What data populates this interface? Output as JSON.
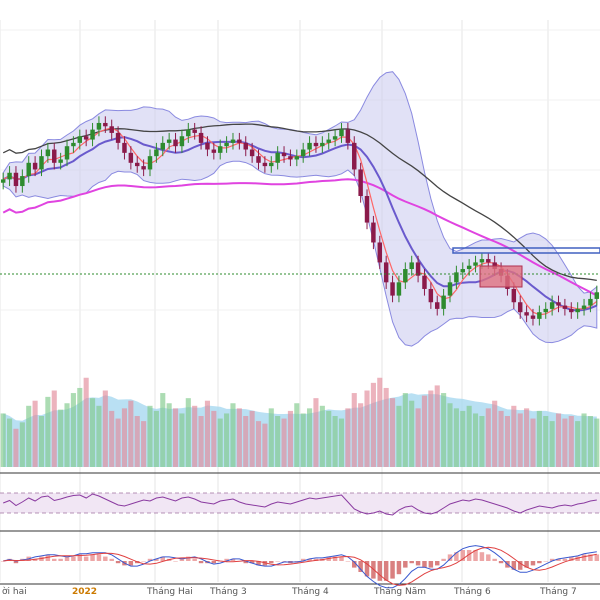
{
  "chart_data": {
    "type": "candlestick",
    "title": "",
    "panels": [
      "price",
      "volume",
      "rsi",
      "macd"
    ],
    "x_tick_labels": [
      {
        "label": "ời hai",
        "highlight": false
      },
      {
        "label": "2022",
        "highlight": true
      },
      {
        "label": "Tháng Hai",
        "highlight": false
      },
      {
        "label": "Tháng 3",
        "highlight": false
      },
      {
        "label": "Tháng 4",
        "highlight": false
      },
      {
        "label": "Tháng Năm",
        "highlight": false
      },
      {
        "label": "Tháng 6",
        "highlight": false
      },
      {
        "label": "Tháng 7",
        "highlight": false
      }
    ],
    "price_scale": [
      0,
      100
    ],
    "price_close": [
      55,
      57,
      53,
      56,
      60,
      58,
      62,
      64,
      60,
      61,
      65,
      66,
      68,
      67,
      70,
      72,
      71,
      69,
      66,
      63,
      60,
      59,
      58,
      62,
      64,
      66,
      67,
      65,
      68,
      70,
      69,
      66,
      64,
      63,
      65,
      66,
      67,
      66,
      64,
      62,
      60,
      59,
      60,
      63,
      62,
      61,
      62,
      64,
      66,
      65,
      66,
      67,
      68,
      70,
      66,
      58,
      50,
      42,
      36,
      30,
      24,
      20,
      24,
      28,
      30,
      26,
      22,
      18,
      16,
      20,
      24,
      27,
      28,
      29,
      30,
      31,
      30,
      28,
      26,
      22,
      18,
      15,
      14,
      13,
      15,
      16,
      18,
      17,
      16,
      15,
      16,
      17,
      19,
      21
    ],
    "sma_fast_color": "#ff6666",
    "sma_slow_color": "#6a5acd",
    "bollinger_fill": "#c8c8ee",
    "ma_long_colors": [
      "#444444",
      "#e044e0"
    ],
    "resistance_line_color": "#4060c0",
    "highlight_box_color": "#e07080",
    "volume": [
      42,
      38,
      30,
      35,
      48,
      52,
      40,
      55,
      60,
      45,
      50,
      58,
      62,
      70,
      54,
      48,
      60,
      44,
      38,
      46,
      52,
      40,
      36,
      48,
      44,
      58,
      50,
      46,
      42,
      54,
      48,
      40,
      52,
      44,
      38,
      42,
      50,
      46,
      40,
      44,
      36,
      34,
      46,
      40,
      38,
      44,
      50,
      42,
      46,
      54,
      48,
      44,
      40,
      38,
      46,
      58,
      50,
      60,
      66,
      70,
      62,
      54,
      48,
      58,
      52,
      46,
      56,
      60,
      64,
      58,
      50,
      46,
      44,
      48,
      42,
      40,
      46,
      52,
      44,
      40,
      48,
      42,
      46,
      38,
      44,
      40,
      36,
      42,
      38,
      40,
      36,
      42,
      40,
      38
    ],
    "rsi": [
      50,
      55,
      45,
      52,
      60,
      54,
      62,
      64,
      55,
      58,
      62,
      65,
      66,
      60,
      68,
      64,
      58,
      52,
      46,
      44,
      48,
      52,
      56,
      54,
      60,
      62,
      58,
      54,
      60,
      62,
      58,
      52,
      50,
      48,
      54,
      56,
      58,
      52,
      48,
      46,
      44,
      42,
      48,
      52,
      50,
      48,
      52,
      56,
      60,
      58,
      60,
      62,
      64,
      66,
      52,
      38,
      32,
      28,
      30,
      34,
      28,
      26,
      36,
      42,
      44,
      36,
      30,
      28,
      32,
      40,
      48,
      52,
      56,
      54,
      58,
      56,
      52,
      48,
      44,
      40,
      34,
      30,
      36,
      40,
      44,
      42,
      40,
      44,
      46,
      44,
      48,
      50,
      54,
      56
    ],
    "macd_histogram": [
      0,
      1,
      -1,
      1,
      2,
      1,
      2,
      3,
      1,
      1,
      2,
      2,
      3,
      2,
      3,
      3,
      2,
      1,
      -1,
      -2,
      -2,
      -1,
      0,
      1,
      1,
      2,
      1,
      0,
      1,
      2,
      1,
      -1,
      -1,
      -1,
      0,
      1,
      1,
      0,
      -1,
      -1,
      -2,
      -2,
      -1,
      0,
      0,
      -1,
      0,
      1,
      1,
      1,
      1,
      2,
      2,
      2,
      0,
      -3,
      -5,
      -7,
      -8,
      -9,
      -9,
      -8,
      -6,
      -3,
      -1,
      -2,
      -3,
      -3,
      -2,
      1,
      3,
      4,
      5,
      5,
      5,
      4,
      3,
      1,
      -1,
      -3,
      -4,
      -4,
      -3,
      -2,
      -1,
      0,
      1,
      1,
      1,
      2,
      2,
      3,
      3,
      3
    ]
  }
}
